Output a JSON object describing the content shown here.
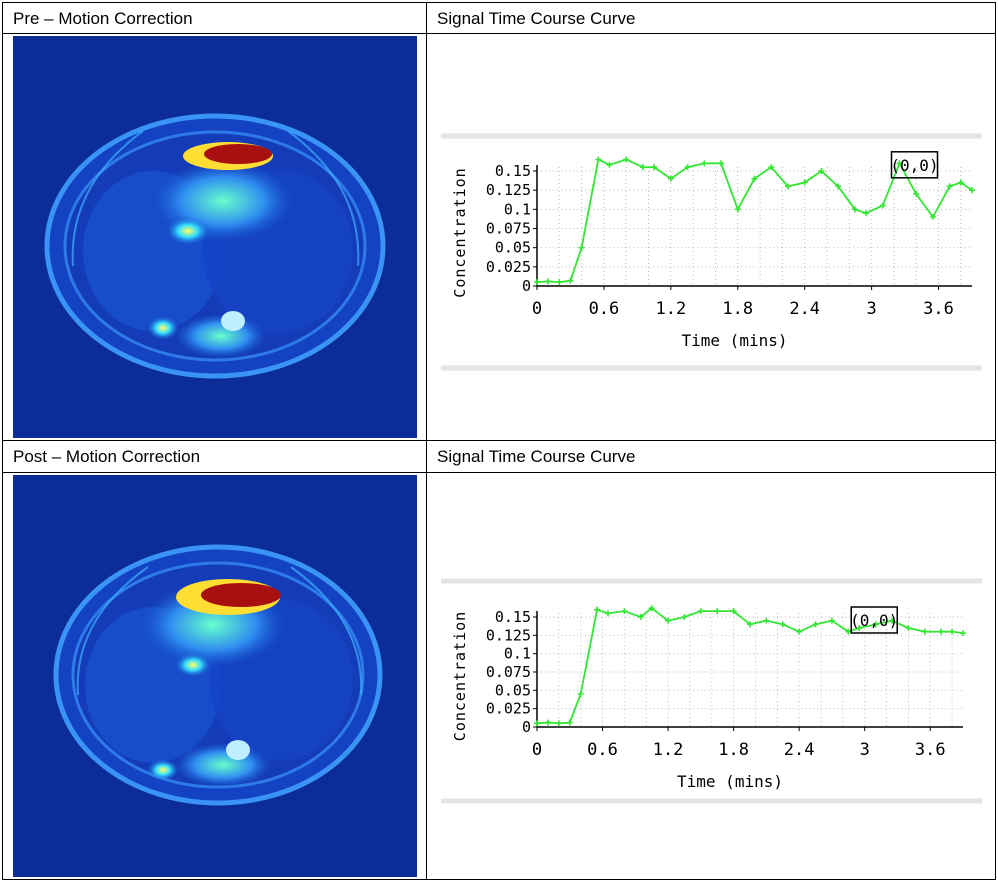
{
  "table": {
    "rows": [
      {
        "left_header": "Pre – Motion Correction",
        "right_header": "Signal Time Course Curve"
      },
      {
        "left_header": "Post – Motion Correction",
        "right_header": "Signal Time Course Curve"
      }
    ]
  },
  "colors": {
    "mri_background": "#0c2c9a",
    "curve": "#33e633",
    "grid": "#bdbdbd"
  },
  "chart_data": [
    {
      "type": "line",
      "title": "",
      "xlabel": "Time (mins)",
      "ylabel": "Concentration",
      "xlim": [
        0,
        3.9
      ],
      "ylim": [
        0,
        0.16
      ],
      "xticks": [
        "0",
        "0.6",
        "1.2",
        "1.8",
        "2.4",
        "3",
        "3.6"
      ],
      "yticks": [
        "0",
        "0.025",
        "0.05",
        "0.075",
        "0.1",
        "0.125",
        "0.15"
      ],
      "annotation": "(0,0)",
      "series": [
        {
          "name": "pre",
          "x": [
            0,
            0.1,
            0.2,
            0.3,
            0.4,
            0.55,
            0.65,
            0.8,
            0.95,
            1.05,
            1.2,
            1.35,
            1.5,
            1.65,
            1.8,
            1.95,
            2.1,
            2.25,
            2.4,
            2.55,
            2.7,
            2.85,
            2.95,
            3.1,
            3.25,
            3.4,
            3.55,
            3.7,
            3.8,
            3.9
          ],
          "y": [
            0.005,
            0.006,
            0.005,
            0.007,
            0.05,
            0.165,
            0.158,
            0.165,
            0.155,
            0.155,
            0.14,
            0.155,
            0.16,
            0.16,
            0.1,
            0.14,
            0.155,
            0.13,
            0.135,
            0.15,
            0.13,
            0.1,
            0.095,
            0.105,
            0.16,
            0.12,
            0.09,
            0.13,
            0.135,
            0.125
          ]
        },
        {
          "name": "post",
          "x": [
            0,
            0.1,
            0.2,
            0.3,
            0.4,
            0.55,
            0.65,
            0.8,
            0.95,
            1.05,
            1.2,
            1.35,
            1.5,
            1.65,
            1.8,
            1.95,
            2.1,
            2.25,
            2.4,
            2.55,
            2.7,
            2.85,
            2.95,
            3.1,
            3.25,
            3.4,
            3.55,
            3.7,
            3.8,
            3.9
          ],
          "y": [
            0.005,
            0.006,
            0.005,
            0.006,
            0.045,
            0.16,
            0.155,
            0.158,
            0.15,
            0.162,
            0.145,
            0.15,
            0.158,
            0.158,
            0.158,
            0.14,
            0.145,
            0.14,
            0.13,
            0.14,
            0.145,
            0.13,
            0.135,
            0.14,
            0.145,
            0.135,
            0.13,
            0.13,
            0.13,
            0.128
          ]
        }
      ]
    }
  ]
}
